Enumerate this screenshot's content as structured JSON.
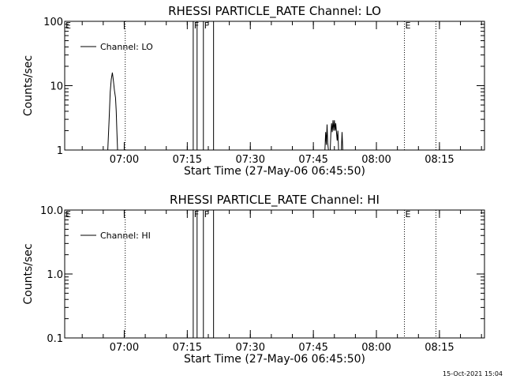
{
  "footer": {
    "timestamp": "15-Oct-2021 15:04"
  },
  "chart_data": [
    {
      "type": "line",
      "title": "RHESSI PARTICLE_RATE Channel: LO",
      "xlabel": "Start Time (27-May-06 06:45:50)",
      "ylabel": "Counts/sec",
      "yscale": "log",
      "ylim": [
        1,
        100
      ],
      "xlim": [
        6.7639,
        8.4286
      ],
      "xticks": [
        {
          "t": 7.0,
          "label": "07:00"
        },
        {
          "t": 7.25,
          "label": "07:15"
        },
        {
          "t": 7.5,
          "label": "07:30"
        },
        {
          "t": 7.75,
          "label": "07:45"
        },
        {
          "t": 8.0,
          "label": "08:00"
        },
        {
          "t": 8.25,
          "label": "08:15"
        }
      ],
      "yticks": [
        {
          "v": 1,
          "label": "1"
        },
        {
          "v": 10,
          "label": "10"
        },
        {
          "v": 100,
          "label": "100"
        }
      ],
      "legend": {
        "position": "top-left",
        "entries": [
          "Channel: LO"
        ]
      },
      "markers": [
        {
          "t": 6.7639,
          "label": "E",
          "style": "dotted"
        },
        {
          "t": 7.0039,
          "label": "",
          "style": "dotted"
        },
        {
          "t": 7.2736,
          "label": "F",
          "style": "solid"
        },
        {
          "t": 7.2889,
          "label": "",
          "style": "solid"
        },
        {
          "t": 7.3139,
          "label": "F",
          "style": "solid"
        },
        {
          "t": 7.3542,
          "label": "",
          "style": "solid"
        },
        {
          "t": 8.1111,
          "label": "E",
          "style": "dotted"
        },
        {
          "t": 8.2361,
          "label": "",
          "style": "dotted"
        }
      ],
      "series": [
        {
          "segments": [
            [
              [
                6.9347,
                1
              ],
              [
                6.9403,
                3.2
              ],
              [
                6.9444,
                8.0
              ],
              [
                6.9486,
                12.5
              ],
              [
                6.9528,
                16.0
              ],
              [
                6.9569,
                12.0
              ],
              [
                6.9611,
                8.5
              ],
              [
                6.9653,
                6.5
              ],
              [
                6.9681,
                4.0
              ],
              [
                6.9708,
                2.0
              ],
              [
                6.9736,
                1
              ]
            ],
            [
              [
                7.7958,
                1
              ],
              [
                7.7986,
                1.9
              ],
              [
                7.8014,
                1.2
              ],
              [
                7.8042,
                2.5
              ],
              [
                7.8069,
                1.3
              ],
              [
                7.8097,
                1
              ]
            ],
            [
              [
                7.8167,
                1
              ],
              [
                7.8194,
                1.8
              ],
              [
                7.8222,
                2.6
              ],
              [
                7.825,
                1.9
              ],
              [
                7.8278,
                2.9
              ],
              [
                7.8306,
                2.0
              ],
              [
                7.8333,
                2.9
              ],
              [
                7.8361,
                2.0
              ],
              [
                7.8389,
                2.6
              ],
              [
                7.8417,
                1.9
              ],
              [
                7.8444,
                1.4
              ],
              [
                7.8472,
                2.0
              ],
              [
                7.85,
                1
              ]
            ],
            [
              [
                7.8611,
                1
              ],
              [
                7.8639,
                1.9
              ],
              [
                7.8667,
                1
              ]
            ]
          ]
        }
      ]
    },
    {
      "type": "line",
      "title": "RHESSI PARTICLE_RATE Channel: HI",
      "xlabel": "Start Time (27-May-06 06:45:50)",
      "ylabel": "Counts/sec",
      "yscale": "log",
      "ylim": [
        0.1,
        10
      ],
      "xlim": [
        6.7639,
        8.4286
      ],
      "xticks": [
        {
          "t": 7.0,
          "label": "07:00"
        },
        {
          "t": 7.25,
          "label": "07:15"
        },
        {
          "t": 7.5,
          "label": "07:30"
        },
        {
          "t": 7.75,
          "label": "07:45"
        },
        {
          "t": 8.0,
          "label": "08:00"
        },
        {
          "t": 8.25,
          "label": "08:15"
        }
      ],
      "yticks": [
        {
          "v": 0.1,
          "label": "0.1"
        },
        {
          "v": 1,
          "label": "1.0"
        },
        {
          "v": 10,
          "label": "10.0"
        }
      ],
      "legend": {
        "position": "top-left",
        "entries": [
          "Channel: HI"
        ]
      },
      "markers": [
        {
          "t": 6.7639,
          "label": "E",
          "style": "dotted"
        },
        {
          "t": 7.0039,
          "label": "",
          "style": "dotted"
        },
        {
          "t": 7.2736,
          "label": "F",
          "style": "solid"
        },
        {
          "t": 7.2889,
          "label": "",
          "style": "solid"
        },
        {
          "t": 7.3139,
          "label": "F",
          "style": "solid"
        },
        {
          "t": 7.3542,
          "label": "",
          "style": "solid"
        },
        {
          "t": 8.1111,
          "label": "E",
          "style": "dotted"
        },
        {
          "t": 8.2361,
          "label": "",
          "style": "dotted"
        }
      ],
      "series": [
        {
          "segments": []
        }
      ]
    }
  ]
}
